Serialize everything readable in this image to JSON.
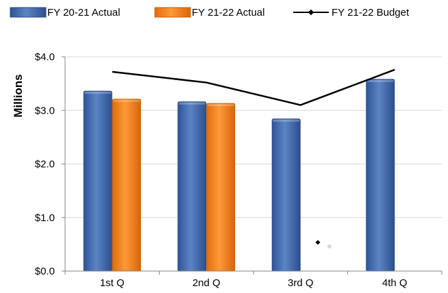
{
  "chart_data": {
    "type": "bar",
    "categories": [
      "1st Q",
      "2nd Q",
      "3rd Q",
      "4th Q"
    ],
    "series": [
      {
        "name": "FY 20-21 Actual",
        "kind": "bar",
        "values": [
          3.36,
          3.16,
          2.84,
          3.58
        ],
        "color": "#3d64a8"
      },
      {
        "name": "FY 21-22 Actual",
        "kind": "bar",
        "values": [
          3.21,
          3.13,
          null,
          null
        ],
        "color": "#f07d18"
      },
      {
        "name": "FY 21-22 Budget",
        "kind": "line",
        "values": [
          3.72,
          3.52,
          3.1,
          3.76
        ],
        "color": "#000000"
      }
    ],
    "ylabel": "Millions",
    "ylim": [
      0,
      4
    ],
    "yticks": [
      0,
      1,
      2,
      3,
      4
    ],
    "ytick_labels": [
      "$0.0",
      "$1.0",
      "$2.0",
      "$3.0",
      "$4.0"
    ],
    "grid": true,
    "legend": "top"
  }
}
